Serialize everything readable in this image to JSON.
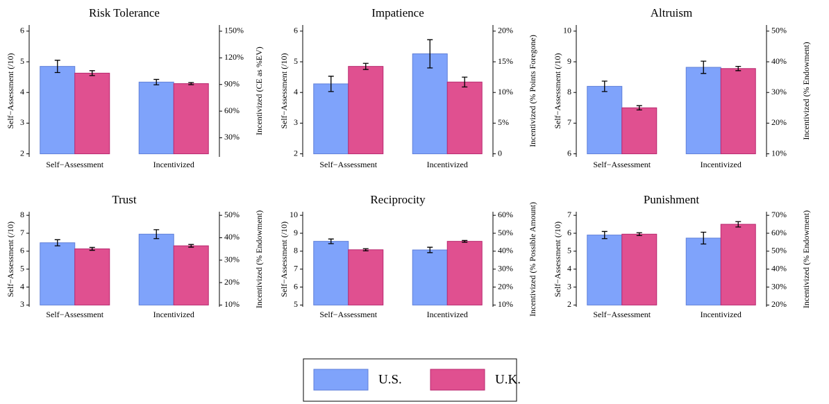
{
  "chart_data": [
    {
      "type": "bar",
      "title": "Risk Tolerance",
      "ylabel": "Self−Assessment (/10)",
      "y2label": "Incentivized (CE as %EV)",
      "categories": [
        "Self−Assessment",
        "Incentivized"
      ],
      "category_axes": [
        "y",
        "y2"
      ],
      "series": [
        {
          "name": "U.S.",
          "color": "#7fa3fb",
          "values": [
            4.85,
            92.7
          ],
          "errors": [
            0.2,
            3
          ]
        },
        {
          "name": "U.K.",
          "color": "#e05090",
          "values": [
            4.63,
            91
          ],
          "errors": [
            0.08,
            1.2
          ]
        }
      ],
      "ylim": [
        1.9,
        6.2
      ],
      "yticks": [
        2,
        3,
        4,
        5,
        6
      ],
      "y2lim": [
        8.5,
        157
      ],
      "y2ticks": [
        {
          "value": 30,
          "label": "30%"
        },
        {
          "value": 60,
          "label": "60%"
        },
        {
          "value": 90,
          "label": "90%"
        },
        {
          "value": 120,
          "label": "120%"
        },
        {
          "value": 150,
          "label": "150%"
        }
      ]
    },
    {
      "type": "bar",
      "title": "Impatience",
      "ylabel": "Self−Assessment (/10)",
      "y2label": "Incentivized (% Points Foregone)",
      "categories": [
        "Self−Assessment",
        "Incentivized"
      ],
      "category_axes": [
        "y",
        "y2"
      ],
      "series": [
        {
          "name": "U.S.",
          "color": "#7fa3fb",
          "values": [
            4.28,
            16.3
          ],
          "errors": [
            0.25,
            2.3
          ]
        },
        {
          "name": "U.K.",
          "color": "#e05090",
          "values": [
            4.85,
            11.7
          ],
          "errors": [
            0.1,
            0.8
          ]
        }
      ],
      "ylim": [
        1.9,
        6.2
      ],
      "yticks": [
        2,
        3,
        4,
        5,
        6
      ],
      "y2lim": [
        -0.5,
        21
      ],
      "y2ticks": [
        0,
        {
          "value": 5,
          "label": "5%"
        },
        {
          "value": 10,
          "label": "10%"
        },
        {
          "value": 15,
          "label": "15%"
        },
        {
          "value": 20,
          "label": "20%"
        }
      ]
    },
    {
      "type": "bar",
      "title": "Altruism",
      "ylabel": "Self−Assessment (/10)",
      "y2label": "Incentivized (% Endowment)",
      "categories": [
        "Self−Assessment",
        "Incentivized"
      ],
      "category_axes": [
        "y",
        "y2"
      ],
      "series": [
        {
          "name": "U.S.",
          "color": "#7fa3fb",
          "values": [
            8.2,
            38.2
          ],
          "errors": [
            0.17,
            2
          ]
        },
        {
          "name": "U.K.",
          "color": "#e05090",
          "values": [
            7.5,
            37.8
          ],
          "errors": [
            0.07,
            0.7
          ]
        }
      ],
      "ylim": [
        5.9,
        10.2
      ],
      "yticks": [
        6,
        7,
        8,
        9,
        10
      ],
      "y2lim": [
        9,
        52
      ],
      "y2ticks": [
        {
          "value": 10,
          "label": "10%"
        },
        {
          "value": 20,
          "label": "20%"
        },
        {
          "value": 30,
          "label": "30%"
        },
        {
          "value": 40,
          "label": "40%"
        },
        {
          "value": 50,
          "label": "50%"
        }
      ]
    },
    {
      "type": "bar",
      "title": "Trust",
      "ylabel": "Self−Assessment (/10)",
      "y2label": "Incentivized (% Endowment)",
      "categories": [
        "Self−Assessment",
        "Incentivized"
      ],
      "category_axes": [
        "y",
        "y2"
      ],
      "series": [
        {
          "name": "U.S.",
          "color": "#7fa3fb",
          "values": [
            6.47,
            41.6
          ],
          "errors": [
            0.17,
            2
          ]
        },
        {
          "name": "U.K.",
          "color": "#e05090",
          "values": [
            6.13,
            36.4
          ],
          "errors": [
            0.08,
            0.6
          ]
        }
      ],
      "ylim": [
        2.9,
        8.2
      ],
      "yticks": [
        3,
        4,
        5,
        6,
        7,
        8
      ],
      "y2lim": [
        9.2,
        51.6
      ],
      "y2ticks": [
        {
          "value": 10,
          "label": "10%"
        },
        {
          "value": 20,
          "label": "20%"
        },
        {
          "value": 30,
          "label": "30%"
        },
        {
          "value": 40,
          "label": "40%"
        },
        {
          "value": 50,
          "label": "50%"
        }
      ]
    },
    {
      "type": "bar",
      "title": "Reciprocity",
      "ylabel": "Self−Assessment (/10)",
      "y2label": "Incentivized (% Possible Amount)",
      "categories": [
        "Self−Assessment",
        "Incentivized"
      ],
      "category_axes": [
        "y",
        "y2"
      ],
      "series": [
        {
          "name": "U.S.",
          "color": "#7fa3fb",
          "values": [
            8.55,
            40.7
          ],
          "errors": [
            0.13,
            1.5
          ]
        },
        {
          "name": "U.K.",
          "color": "#e05090",
          "values": [
            8.08,
            45.5
          ],
          "errors": [
            0.06,
            0.5
          ]
        }
      ],
      "ylim": [
        4.9,
        10.2
      ],
      "yticks": [
        5,
        6,
        7,
        8,
        9,
        10
      ],
      "y2lim": [
        9,
        62
      ],
      "y2ticks": [
        {
          "value": 10,
          "label": "10%"
        },
        {
          "value": 20,
          "label": "20%"
        },
        {
          "value": 30,
          "label": "30%"
        },
        {
          "value": 40,
          "label": "40%"
        },
        {
          "value": 50,
          "label": "50%"
        },
        {
          "value": 60,
          "label": "60%"
        }
      ]
    },
    {
      "type": "bar",
      "title": "Punishment",
      "ylabel": "Self−Assessment (/10)",
      "y2label": "Incentivized (% Endowment)",
      "categories": [
        "Self−Assessment",
        "Incentivized"
      ],
      "category_axes": [
        "y",
        "y2"
      ],
      "series": [
        {
          "name": "U.S.",
          "color": "#7fa3fb",
          "values": [
            5.9,
            57.3
          ],
          "errors": [
            0.2,
            3.3
          ]
        },
        {
          "name": "U.K.",
          "color": "#e05090",
          "values": [
            5.95,
            65
          ],
          "errors": [
            0.08,
            1.5
          ]
        }
      ],
      "ylim": [
        1.9,
        7.2
      ],
      "yticks": [
        2,
        3,
        4,
        5,
        6,
        7
      ],
      "y2lim": [
        19,
        72
      ],
      "y2ticks": [
        {
          "value": 20,
          "label": "20%"
        },
        {
          "value": 30,
          "label": "30%"
        },
        {
          "value": 40,
          "label": "40%"
        },
        {
          "value": 50,
          "label": "50%"
        },
        {
          "value": 60,
          "label": "60%"
        },
        {
          "value": 70,
          "label": "70%"
        }
      ]
    }
  ]
}
